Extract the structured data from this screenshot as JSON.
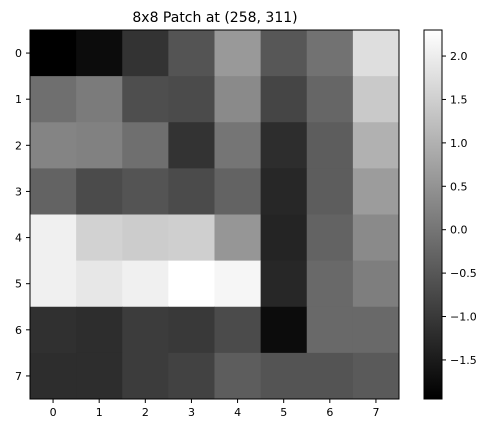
{
  "chart_data": {
    "type": "heatmap",
    "title": "8x8 Patch at (258, 311)",
    "colormap": "gray",
    "vmin": -1.95,
    "vmax": 2.3,
    "x_ticks": [
      "0",
      "1",
      "2",
      "3",
      "4",
      "5",
      "6",
      "7"
    ],
    "y_ticks": [
      "0",
      "1",
      "2",
      "3",
      "4",
      "5",
      "6",
      "7"
    ],
    "colorbar_ticks": [
      {
        "value": 2.0,
        "label": "2.0"
      },
      {
        "value": 1.5,
        "label": "1.5"
      },
      {
        "value": 1.0,
        "label": "1.0"
      },
      {
        "value": 0.5,
        "label": "0.5"
      },
      {
        "value": 0.0,
        "label": "0.0"
      },
      {
        "value": -0.5,
        "label": "−0.5"
      },
      {
        "value": -1.0,
        "label": "−1.0"
      },
      {
        "value": -1.5,
        "label": "−1.5"
      }
    ],
    "values": [
      [
        -1.95,
        -1.75,
        -1.1,
        -0.55,
        0.6,
        -0.5,
        -0.05,
        1.75
      ],
      [
        -0.1,
        0.1,
        -0.65,
        -0.7,
        0.35,
        -0.8,
        -0.25,
        1.4
      ],
      [
        0.25,
        0.2,
        -0.1,
        -1.1,
        0.0,
        -1.2,
        -0.4,
        1.0
      ],
      [
        -0.3,
        -0.7,
        -0.55,
        -0.7,
        -0.3,
        -1.3,
        -0.4,
        0.65
      ],
      [
        2.05,
        1.55,
        1.45,
        1.5,
        0.55,
        -1.35,
        -0.3,
        0.35
      ],
      [
        2.05,
        1.9,
        2.05,
        2.3,
        2.15,
        -1.3,
        -0.2,
        0.15
      ],
      [
        -1.15,
        -1.2,
        -0.95,
        -1.0,
        -0.7,
        -1.75,
        -0.2,
        -0.2
      ],
      [
        -1.2,
        -1.2,
        -0.95,
        -0.85,
        -0.4,
        -0.55,
        -0.55,
        -0.45
      ]
    ]
  }
}
